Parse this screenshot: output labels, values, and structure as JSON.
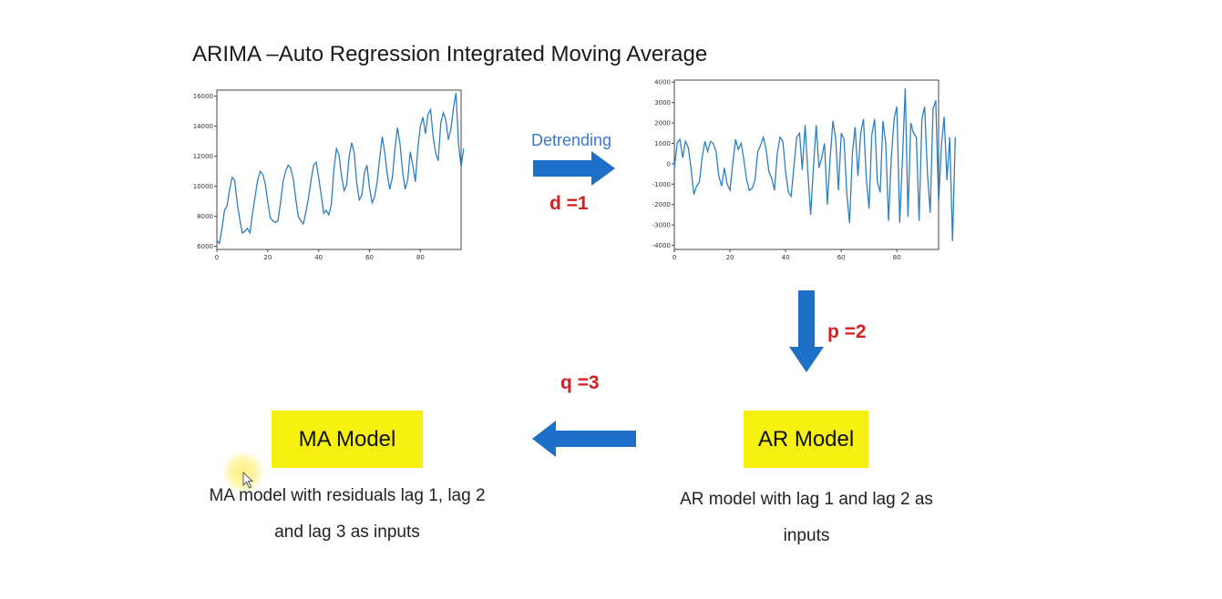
{
  "title": "ARIMA –Auto Regression Integrated Moving Average",
  "steps": {
    "detrending_label": "Detrending",
    "d_param": "d =1",
    "p_param": "p =2",
    "q_param": "q =3"
  },
  "models": {
    "ar": {
      "label": "AR Model",
      "caption_line1": "AR model with lag 1 and lag 2 as",
      "caption_line2": "inputs"
    },
    "ma": {
      "label": "MA Model",
      "caption_line1": "MA model with residuals lag 1, lag 2",
      "caption_line2": "and lag 3 as inputs"
    }
  },
  "colors": {
    "line": "#2f7fbf",
    "arrow": "#1e6fc8",
    "box": "#f5f010",
    "param": "#d62020",
    "detrending": "#3a78c9"
  },
  "icons": {
    "arrow": "block-arrow",
    "cursor": "mouse-pointer-icon"
  },
  "chart_data": [
    {
      "type": "line",
      "xlim": [
        0,
        96
      ],
      "ylim": [
        5800,
        16400
      ],
      "xticks": [
        0,
        20,
        40,
        60,
        80
      ],
      "yticks": [
        6000,
        8000,
        10000,
        12000,
        14000,
        16000
      ],
      "values": [
        6400,
        6200,
        7200,
        8400,
        8700,
        9800,
        10600,
        10400,
        8900,
        7800,
        6900,
        7000,
        7200,
        6900,
        8200,
        9300,
        10400,
        11000,
        10800,
        10200,
        9000,
        7900,
        7700,
        7600,
        7700,
        8900,
        10300,
        11000,
        11400,
        11200,
        10500,
        9200,
        8000,
        7700,
        7500,
        8300,
        9200,
        10400,
        11400,
        11600,
        10600,
        9400,
        8200,
        8400,
        8100,
        8800,
        11100,
        12500,
        12100,
        10700,
        9700,
        10100,
        12000,
        12900,
        12200,
        10200,
        9100,
        9400,
        10900,
        11400,
        9900,
        8900,
        9300,
        10300,
        11900,
        13300,
        12200,
        10800,
        9800,
        10600,
        12500,
        13900,
        12800,
        11000,
        9800,
        10400,
        12300,
        11400,
        10300,
        12500,
        14000,
        14600,
        13500,
        14800,
        15100,
        13300,
        12200,
        11700,
        14200,
        14900,
        14400,
        13100,
        13800,
        15200,
        16200,
        12800,
        11300,
        12500
      ]
    },
    {
      "type": "line",
      "xlim": [
        0,
        95
      ],
      "ylim": [
        -4200,
        4100
      ],
      "xticks": [
        0,
        20,
        40,
        60,
        80
      ],
      "yticks": [
        4000,
        3000,
        2000,
        1000,
        0,
        -1000,
        -2000,
        -3000,
        -4000
      ],
      "values": [
        -200,
        1000,
        1200,
        300,
        1100,
        800,
        -200,
        -1500,
        -1100,
        -900,
        300,
        1100,
        600,
        1100,
        1000,
        600,
        -600,
        -1100,
        -200,
        -1000,
        -1300,
        0,
        1200,
        700,
        1000,
        200,
        -800,
        -1300,
        -1200,
        -800,
        600,
        900,
        1300,
        700,
        -400,
        -700,
        -1300,
        500,
        1300,
        1100,
        -400,
        -1400,
        -1600,
        -100,
        1300,
        1500,
        -300,
        1900,
        -400,
        -2500,
        -200,
        1900,
        -200,
        300,
        1000,
        -2000,
        200,
        2100,
        1200,
        -1300,
        1500,
        1200,
        -1500,
        -2900,
        500,
        1800,
        -600,
        1500,
        2200,
        -700,
        -2200,
        1400,
        2200,
        -900,
        -1400,
        2100,
        1000,
        -2800,
        300,
        2200,
        2800,
        -2900,
        200,
        3700,
        -2600,
        2000,
        1500,
        1300,
        -2800,
        2200,
        2800,
        -500,
        -2400,
        2700,
        3100,
        -1900,
        900,
        2300,
        -800,
        1300,
        -3800,
        1300
      ]
    }
  ]
}
